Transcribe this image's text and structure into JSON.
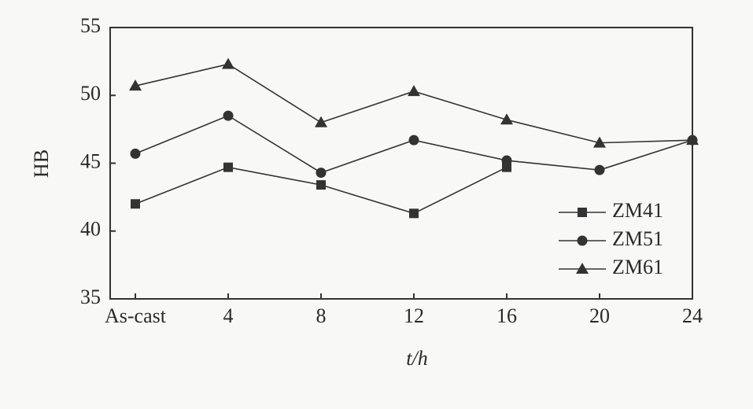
{
  "chart_data": {
    "type": "line",
    "xlabel": "t/h",
    "ylabel": "HB",
    "categories": [
      "As-cast",
      "4",
      "8",
      "12",
      "16",
      "20",
      "24"
    ],
    "series": [
      {
        "name": "ZM41",
        "color": "#333333",
        "marker": "square",
        "values": [
          42,
          44.7,
          43.4,
          41.3,
          44.7,
          null,
          null
        ]
      },
      {
        "name": "ZM51",
        "color": "#333333",
        "marker": "circle",
        "values": [
          45.7,
          48.5,
          44.3,
          46.7,
          45.2,
          44.5,
          46.7
        ]
      },
      {
        "name": "ZM61",
        "color": "#333333",
        "marker": "triangle",
        "values": [
          50.7,
          52.3,
          48,
          50.3,
          48.2,
          46.5,
          46.7
        ]
      }
    ],
    "ylim": [
      35,
      55
    ],
    "yticks": [
      35,
      40,
      45,
      50,
      55
    ],
    "grid": false,
    "legend": "lower right"
  }
}
